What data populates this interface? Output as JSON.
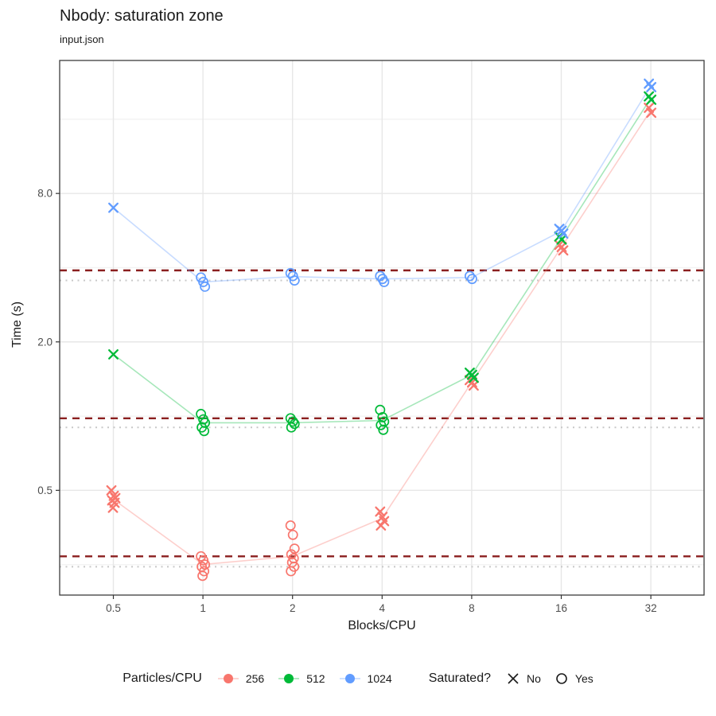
{
  "header": {
    "title": "Nbody: saturation zone",
    "subtitle": "input.json"
  },
  "legend": {
    "color_title": "Particles/CPU",
    "color_items": [
      {
        "label": "256",
        "color": "#F8766D"
      },
      {
        "label": "512",
        "color": "#00BA38"
      },
      {
        "label": "1024",
        "color": "#619CFF"
      }
    ],
    "shape_title": "Saturated?",
    "shape_items": [
      {
        "label": "No",
        "shape": "x"
      },
      {
        "label": "Yes",
        "shape": "o"
      }
    ]
  },
  "chart_data": {
    "type": "scatter",
    "title": "Nbody: saturation zone",
    "subtitle": "input.json",
    "x_axis": {
      "label": "Blocks/CPU",
      "scale": "log2",
      "ticks": [
        0.5,
        1,
        2,
        4,
        8,
        16,
        32
      ],
      "tick_labels": [
        "0.5",
        "1",
        "2",
        "4",
        "8",
        "16",
        "32"
      ],
      "range": [
        0.33,
        48.3
      ]
    },
    "y_axis": {
      "label": "Time (s)",
      "scale": "log2",
      "ticks": [
        8.0,
        2.0,
        0.5
      ],
      "tick_labels": [
        "8.0",
        "2.0",
        "0.5"
      ],
      "minor_ticks": [
        16,
        4,
        1,
        0.25
      ],
      "range": [
        0.188,
        27.7
      ]
    },
    "ref_lines": [
      {
        "style": "dashed",
        "color": "#8B1F1F",
        "values": [
          3.9,
          0.98,
          0.27
        ]
      },
      {
        "style": "dotted",
        "color": "#C8C8C8",
        "values": [
          3.55,
          0.9,
          0.245
        ]
      }
    ],
    "series": [
      {
        "name": "256",
        "color": "#F8766D",
        "line_means": [
          [
            0.5,
            0.46
          ],
          [
            1,
            0.25
          ],
          [
            2,
            0.27
          ],
          [
            4,
            0.385
          ],
          [
            8,
            1.37
          ],
          [
            16,
            4.83
          ],
          [
            32,
            17.4
          ]
        ],
        "clusters": [
          {
            "x": 0.5,
            "saturated": false,
            "times": [
              0.5,
              0.475,
              0.465,
              0.455,
              0.445,
              0.425
            ]
          },
          {
            "x": 1,
            "saturated": true,
            "times": [
              0.27,
              0.26,
              0.25,
              0.245,
              0.235,
              0.225
            ]
          },
          {
            "x": 2,
            "saturated": true,
            "times": [
              0.36,
              0.33,
              0.29,
              0.275,
              0.265,
              0.255,
              0.245,
              0.235
            ]
          },
          {
            "x": 4,
            "saturated": false,
            "times": [
              0.41,
              0.39,
              0.375,
              0.36
            ]
          },
          {
            "x": 8,
            "saturated": false,
            "times": [
              1.4,
              1.37,
              1.33
            ]
          },
          {
            "x": 16,
            "saturated": false,
            "times": [
              4.95,
              4.85,
              4.7
            ]
          },
          {
            "x": 32,
            "saturated": false,
            "times": [
              17.8,
              17.0
            ]
          }
        ]
      },
      {
        "name": "512",
        "color": "#00BA38",
        "line_means": [
          [
            0.5,
            1.78
          ],
          [
            1,
            0.94
          ],
          [
            2,
            0.94
          ],
          [
            4,
            0.96
          ],
          [
            8,
            1.47
          ],
          [
            16,
            5.28
          ],
          [
            32,
            19.5
          ]
        ],
        "clusters": [
          {
            "x": 0.5,
            "saturated": false,
            "times": [
              1.78
            ]
          },
          {
            "x": 1,
            "saturated": true,
            "times": [
              1.02,
              0.97,
              0.94,
              0.9,
              0.87
            ]
          },
          {
            "x": 2,
            "saturated": true,
            "times": [
              0.98,
              0.95,
              0.93,
              0.9
            ]
          },
          {
            "x": 4,
            "saturated": true,
            "times": [
              1.06,
              0.99,
              0.95,
              0.92,
              0.88
            ]
          },
          {
            "x": 8,
            "saturated": false,
            "times": [
              1.5,
              1.47,
              1.43
            ]
          },
          {
            "x": 16,
            "saturated": false,
            "times": [
              5.35,
              5.2
            ]
          },
          {
            "x": 32,
            "saturated": false,
            "times": [
              19.8,
              19.2
            ]
          }
        ]
      },
      {
        "name": "1024",
        "color": "#619CFF",
        "line_means": [
          [
            0.5,
            7.0
          ],
          [
            1,
            3.5
          ],
          [
            2,
            3.68
          ],
          [
            4,
            3.6
          ],
          [
            8,
            3.65
          ],
          [
            16,
            5.63
          ],
          [
            32,
            21.9
          ]
        ],
        "clusters": [
          {
            "x": 0.5,
            "saturated": false,
            "times": [
              7.0
            ]
          },
          {
            "x": 1,
            "saturated": true,
            "times": [
              3.65,
              3.5,
              3.35
            ]
          },
          {
            "x": 2,
            "saturated": true,
            "times": [
              3.8,
              3.7,
              3.55
            ]
          },
          {
            "x": 4,
            "saturated": true,
            "times": [
              3.7,
              3.6,
              3.5
            ]
          },
          {
            "x": 8,
            "saturated": true,
            "times": [
              3.7,
              3.6
            ]
          },
          {
            "x": 16,
            "saturated": false,
            "times": [
              5.75,
              5.65,
              5.5
            ]
          },
          {
            "x": 32,
            "saturated": false,
            "times": [
              22.3,
              21.6
            ]
          }
        ]
      }
    ],
    "style": {
      "grid_major": "#E7E7E7",
      "grid_minor": "#F3F3F3",
      "panel_border": "#3c3c3c",
      "tick_text": "#4d4d4d",
      "line_opacity": 0.35
    }
  }
}
